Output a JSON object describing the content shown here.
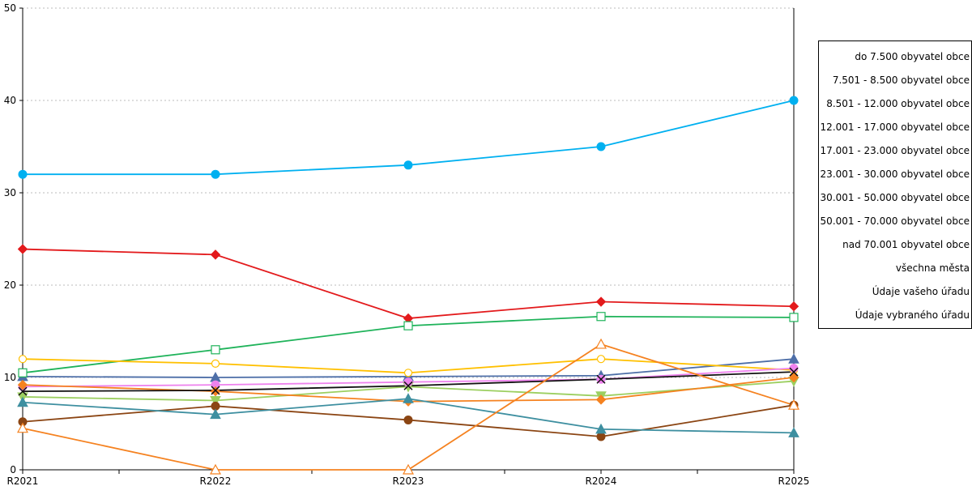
{
  "chart_data": {
    "type": "line",
    "x": [
      "R2021",
      "R2022",
      "R2023",
      "R2024",
      "R2025"
    ],
    "ylim": [
      0,
      50
    ],
    "yticks": [
      0,
      10,
      20,
      30,
      40,
      50
    ],
    "grid": "horizontal dotted",
    "legend_position": "right",
    "series": [
      {
        "name": "do 7.500 obyvatel obce",
        "color": "#4e6fa8",
        "marker": "triangle",
        "values": [
          10.1,
          10.0,
          10.1,
          10.2,
          12.0
        ]
      },
      {
        "name": "7.501 - 8.500 obyvatel obce",
        "color": "#e31a1c",
        "marker": "diamond",
        "values": [
          23.9,
          23.3,
          16.4,
          18.2,
          17.7
        ]
      },
      {
        "name": "8.501 - 12.000 obyvatel obce",
        "color": "#1fb35a",
        "marker": "square-open",
        "values": [
          10.5,
          13.0,
          15.6,
          16.6,
          16.5
        ]
      },
      {
        "name": "12.001 - 17.000 obyvatel obce",
        "color": "#ffc000",
        "marker": "circle-open",
        "values": [
          12.0,
          11.5,
          10.5,
          12.0,
          10.8
        ]
      },
      {
        "name": "17.001 - 23.000 obyvatel obce",
        "color": "#9ccf60",
        "marker": "triangle-down",
        "values": [
          7.9,
          7.5,
          9.0,
          8.0,
          9.6
        ]
      },
      {
        "name": "23.001 - 30.000 obyvatel obce",
        "color": "#ee82ee",
        "marker": "circle",
        "values": [
          9.0,
          9.2,
          9.5,
          9.8,
          11.0
        ]
      },
      {
        "name": "30.001 - 50.000 obyvatel obce",
        "color": "#f58220",
        "marker": "diamond",
        "values": [
          9.2,
          8.5,
          7.4,
          7.6,
          10.0
        ]
      },
      {
        "name": "50.001 - 70.000 obyvatel obce",
        "color": "#8b4513",
        "marker": "circle",
        "values": [
          5.2,
          6.9,
          5.4,
          3.6,
          7.0
        ]
      },
      {
        "name": "nad 70.001 obyvatel obce",
        "color": "#3e8fa0",
        "marker": "triangle",
        "values": [
          7.3,
          6.0,
          7.7,
          4.4,
          4.0
        ]
      },
      {
        "name": "všechna města",
        "color": "#111111",
        "marker": "x",
        "values": [
          8.5,
          8.6,
          9.1,
          9.8,
          10.6
        ]
      },
      {
        "name": "Údaje vašeho úřadu",
        "color": "#00b0f0",
        "marker": "circle",
        "values": [
          32.0,
          32.0,
          33.0,
          35.0,
          40.0
        ]
      },
      {
        "name": "Údaje vybraného úřadu",
        "color": "#f58220",
        "marker": "triangle-open",
        "values": [
          4.5,
          0.0,
          0.0,
          13.6,
          7.0
        ]
      }
    ]
  }
}
